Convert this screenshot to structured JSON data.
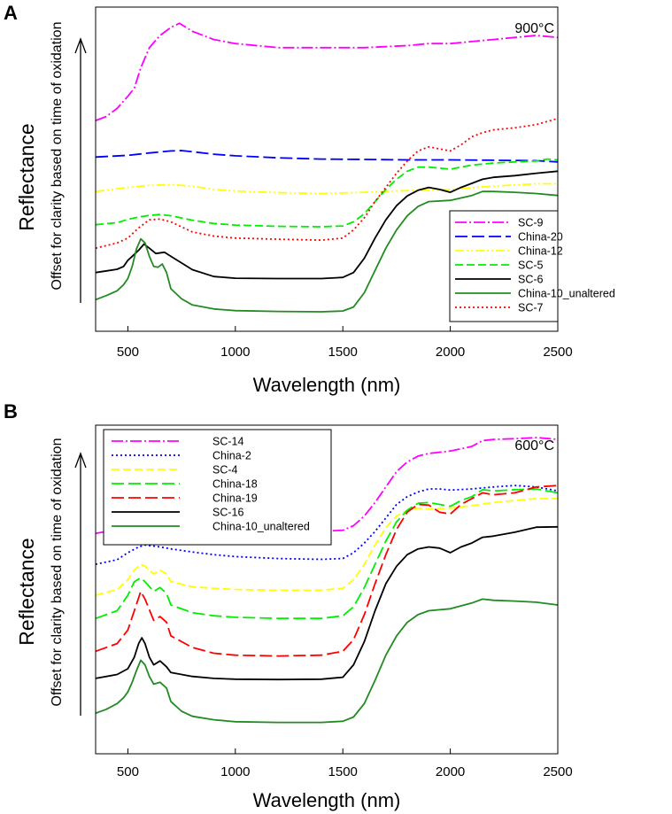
{
  "chart_data": [
    {
      "type": "line",
      "panel_label": "A",
      "temperature_label": "900°C",
      "xlabel": "Wavelength (nm)",
      "ylabel": "Reflectance",
      "ylabel_note": "Offset for clarity based on time of oxidation",
      "xlim": [
        350,
        2500
      ],
      "xticks": [
        500,
        1000,
        1500,
        2000,
        2500
      ],
      "yticks": [],
      "legend_position": "bottom-right",
      "series": [
        {
          "name": "SC-9",
          "color": "#ff00ff",
          "dash": "dashdot",
          "x": [
            350,
            400,
            450,
            500,
            530,
            560,
            600,
            650,
            700,
            740,
            800,
            900,
            1000,
            1200,
            1400,
            1600,
            1800,
            1900,
            2000,
            2100,
            2200,
            2300,
            2400,
            2500
          ],
          "y": [
            82,
            83,
            85,
            88,
            90,
            95,
            100,
            103,
            105,
            106,
            104,
            102,
            101,
            100,
            100,
            100,
            100.5,
            101,
            101,
            101.5,
            102,
            102.5,
            103,
            102.5
          ]
        },
        {
          "name": "China-20",
          "color": "#0000ff",
          "dash": "longdash",
          "x": [
            350,
            500,
            600,
            700,
            750,
            800,
            900,
            1000,
            1200,
            1400,
            1600,
            1800,
            2000,
            2200,
            2400,
            2500
          ],
          "y": [
            73,
            73.4,
            74,
            74.5,
            74.6,
            74.3,
            73.7,
            73.3,
            72.8,
            72.5,
            72.4,
            72.3,
            72.3,
            72.2,
            72.1,
            71.8
          ]
        },
        {
          "name": "China-12",
          "color": "#ffff00",
          "dash": "dashdotdot",
          "x": [
            350,
            500,
            600,
            700,
            800,
            900,
            1000,
            1200,
            1400,
            1600,
            1800,
            2000,
            2200,
            2400,
            2500
          ],
          "y": [
            64.5,
            65.5,
            66,
            66.2,
            65.8,
            65,
            64.6,
            64.2,
            64,
            64.3,
            64.7,
            65,
            65.8,
            66.4,
            66.4
          ]
        },
        {
          "name": "SC-5",
          "color": "#00ee00",
          "dash": "dash",
          "x": [
            350,
            450,
            500,
            550,
            600,
            650,
            700,
            800,
            900,
            1000,
            1200,
            1400,
            1500,
            1550,
            1600,
            1650,
            1700,
            1750,
            1800,
            1850,
            1900,
            2000,
            2100,
            2200,
            2300,
            2400,
            2450,
            2500
          ],
          "y": [
            56.3,
            56.8,
            57.6,
            58.2,
            58.6,
            58.8,
            58.5,
            57.4,
            56.6,
            56.2,
            55.9,
            55.8,
            56,
            57,
            59,
            62,
            65,
            67.5,
            69.5,
            70.5,
            70.5,
            70,
            71,
            71.5,
            71.8,
            72,
            72.5,
            72.3
          ]
        },
        {
          "name": "SC-6",
          "color": "#000000",
          "dash": "solid",
          "x": [
            350,
            450,
            480,
            500,
            520,
            550,
            575,
            600,
            630,
            670,
            700,
            800,
            900,
            1000,
            1200,
            1400,
            1500,
            1550,
            1600,
            1650,
            1700,
            1750,
            1800,
            1850,
            1900,
            1950,
            2000,
            2050,
            2100,
            2150,
            2200,
            2300,
            2400,
            2500
          ],
          "y": [
            44.5,
            45.3,
            46,
            47.5,
            48.5,
            50,
            51.5,
            50.5,
            49.2,
            49.5,
            48.5,
            45.2,
            43.5,
            43.1,
            43,
            43,
            43.3,
            44.5,
            48,
            53,
            57.5,
            61,
            63.4,
            64.8,
            65.5,
            65,
            64.3,
            65.5,
            66.5,
            67.5,
            68,
            68.4,
            69,
            69.5
          ]
        },
        {
          "name": "China-10_unaltered",
          "color": "#228b22",
          "dash": "solid",
          "x": [
            350,
            400,
            450,
            480,
            500,
            520,
            540,
            560,
            580,
            600,
            620,
            640,
            660,
            680,
            700,
            750,
            800,
            900,
            1000,
            1200,
            1400,
            1500,
            1550,
            1600,
            1650,
            1700,
            1750,
            1800,
            1850,
            1900,
            2000,
            2100,
            2150,
            2200,
            2300,
            2400,
            2500
          ],
          "y": [
            37.8,
            38.8,
            40,
            41.5,
            43,
            46,
            50.3,
            52.8,
            51.8,
            48.5,
            46,
            45.8,
            46.6,
            44.5,
            40.5,
            38,
            36.5,
            35.5,
            35.1,
            34.9,
            34.8,
            35,
            36,
            39.5,
            45,
            50.5,
            55,
            58.5,
            60.8,
            62,
            62.3,
            63.5,
            64.5,
            64.5,
            64.3,
            64,
            63.5
          ]
        },
        {
          "name": "SC-7",
          "color": "#ff0000",
          "dash": "dot",
          "x": [
            350,
            450,
            500,
            550,
            600,
            650,
            700,
            800,
            900,
            1000,
            1200,
            1400,
            1500,
            1550,
            1600,
            1650,
            1700,
            1750,
            1800,
            1850,
            1900,
            1950,
            2000,
            2050,
            2100,
            2150,
            2200,
            2300,
            2400,
            2500
          ],
          "y": [
            50.5,
            51.8,
            53,
            55.5,
            57.5,
            57.7,
            57,
            54.5,
            53.5,
            53,
            52.7,
            52.5,
            53,
            55,
            58,
            62,
            65.5,
            69,
            72,
            74.5,
            75.5,
            75,
            74.5,
            76,
            78,
            79,
            79.7,
            80.2,
            81,
            82.5
          ]
        }
      ]
    },
    {
      "type": "line",
      "panel_label": "B",
      "temperature_label": "600°C",
      "xlabel": "Wavelength (nm)",
      "ylabel": "Reflectance",
      "ylabel_note": "Offset for clarity based on time of oxidation",
      "xlim": [
        350,
        2500
      ],
      "xticks": [
        500,
        1000,
        1500,
        2000,
        2500
      ],
      "yticks": [],
      "legend_position": "top-left",
      "series": [
        {
          "name": "SC-14",
          "color": "#ff00ff",
          "dash": "dashdot",
          "x": [
            350,
            450,
            500,
            550,
            580,
            650,
            700,
            800,
            900,
            1000,
            1200,
            1400,
            1500,
            1550,
            1600,
            1650,
            1700,
            1750,
            1800,
            1850,
            1900,
            2000,
            2100,
            2150,
            2200,
            2300,
            2400,
            2500
          ],
          "y": [
            67,
            68,
            69.5,
            71,
            71.5,
            71,
            70.5,
            69.5,
            68.8,
            68.2,
            67.8,
            67.6,
            67.8,
            69,
            71.5,
            75,
            79,
            83,
            85.5,
            87,
            87.7,
            88.3,
            89.5,
            91,
            91.3,
            91.5,
            91.8,
            91.3
          ]
        },
        {
          "name": "China-2",
          "color": "#0000ff",
          "dash": "dot",
          "x": [
            350,
            450,
            500,
            550,
            580,
            650,
            700,
            800,
            900,
            1000,
            1200,
            1400,
            1500,
            1550,
            1600,
            1650,
            1700,
            1750,
            1800,
            1850,
            1900,
            1950,
            2000,
            2100,
            2200,
            2300,
            2400,
            2500
          ],
          "y": [
            59,
            60.2,
            62,
            63.5,
            64,
            63.5,
            63,
            62.2,
            61.5,
            61,
            60.5,
            60.3,
            60.5,
            62,
            64.5,
            67.5,
            71,
            74.5,
            76.5,
            77.7,
            78.5,
            78.5,
            78.2,
            78.5,
            79,
            79.4,
            79,
            78
          ]
        },
        {
          "name": "SC-4",
          "color": "#ffff00",
          "dash": "dash",
          "x": [
            350,
            450,
            500,
            530,
            560,
            580,
            620,
            650,
            680,
            700,
            800,
            900,
            1000,
            1200,
            1400,
            1500,
            1550,
            1600,
            1650,
            1700,
            1750,
            1800,
            1850,
            1900,
            2000,
            2100,
            2200,
            2300,
            2400,
            2500
          ],
          "y": [
            51,
            52.5,
            55,
            57.5,
            59,
            58.5,
            56.5,
            57.5,
            56.5,
            54.5,
            53.2,
            52.8,
            52.5,
            52.3,
            52.3,
            52.8,
            55,
            59,
            64,
            68.5,
            71.5,
            73,
            73.5,
            73.3,
            73.5,
            74.2,
            75,
            75.5,
            76,
            76
          ]
        },
        {
          "name": "China-18",
          "color": "#00ee00",
          "dash": "longdash",
          "x": [
            350,
            450,
            500,
            530,
            560,
            580,
            620,
            650,
            680,
            700,
            800,
            900,
            1000,
            1200,
            1400,
            1500,
            1550,
            1600,
            1650,
            1700,
            1750,
            1800,
            1850,
            1900,
            1950,
            2000,
            2050,
            2100,
            2150,
            2200,
            2300,
            2400,
            2500
          ],
          "y": [
            45,
            47,
            51,
            54.5,
            55.5,
            54.5,
            52,
            53,
            51.5,
            48.5,
            46.5,
            45.7,
            45.3,
            45,
            45,
            45.7,
            48,
            53,
            59,
            65,
            70,
            73,
            74.8,
            75,
            74.5,
            74,
            75.5,
            76.5,
            78.3,
            78,
            78.3,
            78.5,
            77.5
          ]
        },
        {
          "name": "China-19",
          "color": "#ff0000",
          "dash": "longdash",
          "x": [
            350,
            450,
            500,
            530,
            560,
            580,
            620,
            650,
            680,
            700,
            800,
            900,
            1000,
            1200,
            1400,
            1500,
            1550,
            1600,
            1650,
            1700,
            1750,
            1800,
            1850,
            1900,
            1950,
            2000,
            2050,
            2100,
            2150,
            2200,
            2300,
            2400,
            2500
          ],
          "y": [
            36.5,
            38.5,
            42,
            47,
            52,
            50,
            44.5,
            45.5,
            44,
            40.5,
            37.5,
            36,
            35.5,
            35.3,
            35.5,
            36.5,
            39.5,
            46,
            54,
            61.5,
            68,
            72.5,
            74.5,
            74.3,
            72.5,
            72,
            74.5,
            76,
            77.5,
            77,
            77.5,
            79,
            79.4
          ]
        },
        {
          "name": "SC-16",
          "color": "#000000",
          "dash": "solid",
          "x": [
            350,
            450,
            500,
            530,
            550,
            565,
            580,
            600,
            620,
            650,
            680,
            700,
            800,
            900,
            1000,
            1200,
            1400,
            1500,
            1550,
            1600,
            1650,
            1700,
            1750,
            1800,
            1850,
            1900,
            1950,
            2000,
            2050,
            2100,
            2150,
            2200,
            2300,
            2400,
            2500
          ],
          "y": [
            29.5,
            30.5,
            32,
            35,
            38.5,
            40,
            38.5,
            35,
            33,
            34,
            32.5,
            31,
            30,
            29.5,
            29.3,
            29.2,
            29.3,
            29.8,
            33,
            39,
            47,
            54,
            58.5,
            61.5,
            63,
            63.5,
            63.2,
            62,
            63.5,
            64.5,
            66,
            66.3,
            67.3,
            68.6,
            68.7
          ]
        },
        {
          "name": "China-10_unaltered",
          "color": "#228b22",
          "dash": "solid",
          "x": [
            350,
            400,
            450,
            480,
            500,
            520,
            540,
            560,
            580,
            600,
            620,
            650,
            680,
            700,
            750,
            800,
            900,
            1000,
            1200,
            1400,
            1500,
            1550,
            1600,
            1650,
            1700,
            1750,
            1800,
            1850,
            1900,
            2000,
            2100,
            2150,
            2200,
            2300,
            2400,
            2500
          ],
          "y": [
            20.5,
            21.5,
            23,
            24.5,
            26,
            28.5,
            31.5,
            34.2,
            33,
            30,
            28,
            28.5,
            27,
            23.5,
            21,
            19.7,
            18.8,
            18.3,
            18.1,
            18.1,
            18.4,
            19.5,
            23,
            29,
            35.5,
            40.5,
            44,
            46,
            47,
            47.5,
            49,
            50,
            49.7,
            49.5,
            49.2,
            48.5
          ]
        }
      ]
    }
  ]
}
